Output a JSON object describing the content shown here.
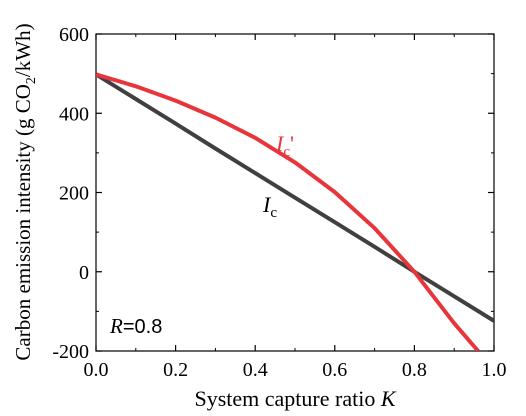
{
  "chart_data": {
    "type": "line",
    "xlabel": "System capture ratio",
    "xlabel_var": "K",
    "ylabel_pre": "Carbon emission intensity (g CO",
    "ylabel_sub": "2",
    "ylabel_post": "/kWh)",
    "xlim": [
      0,
      1.0
    ],
    "ylim": [
      -200,
      600
    ],
    "x_ticks": [
      0.0,
      0.2,
      0.4,
      0.6,
      0.8,
      1.0
    ],
    "x_tick_labels": [
      "0.0",
      "0.2",
      "0.4",
      "0.6",
      "0.8",
      "1.0"
    ],
    "y_ticks": [
      -200,
      0,
      200,
      400,
      600
    ],
    "y_tick_labels": [
      "-200",
      "0",
      "200",
      "400",
      "600"
    ],
    "grid": false,
    "series": [
      {
        "name": "Ic",
        "label_main": "I",
        "label_sub": "c",
        "label_suffix": "",
        "color": "#404040",
        "x": [
          0.0,
          0.1,
          0.2,
          0.3,
          0.4,
          0.5,
          0.6,
          0.7,
          0.8,
          0.9,
          1.0
        ],
        "y": [
          498,
          436,
          374,
          311,
          249,
          187,
          125,
          63,
          0,
          -62,
          -124
        ]
      },
      {
        "name": "Ic'",
        "label_main": "I",
        "label_sub": "c",
        "label_suffix": "'",
        "color": "#e8353b",
        "x": [
          0.0,
          0.1,
          0.2,
          0.3,
          0.4,
          0.5,
          0.6,
          0.7,
          0.8,
          0.9,
          0.96
        ],
        "y": [
          498,
          468,
          432,
          389,
          338,
          276,
          201,
          110,
          0,
          -130,
          -200
        ]
      }
    ],
    "annotation": {
      "var": "R",
      "text": "=0.8"
    }
  }
}
